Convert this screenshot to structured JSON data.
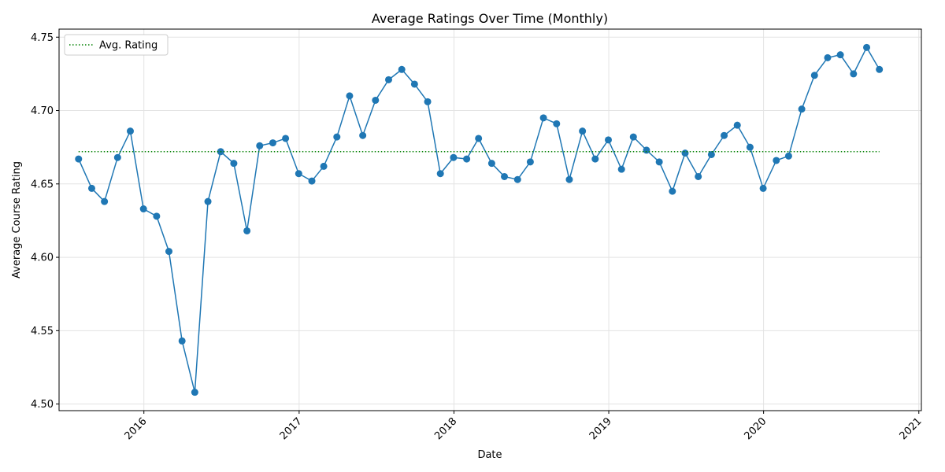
{
  "chart_data": {
    "type": "line",
    "title": "Average Ratings Over Time (Monthly)",
    "xlabel": "Date",
    "ylabel": "Average Course Rating",
    "xlim": [
      "2015-06-15",
      "2021-01-07"
    ],
    "ylim": [
      4.4955,
      4.7555
    ],
    "yticks": [
      4.5,
      4.55,
      4.6,
      4.65,
      4.7,
      4.75
    ],
    "ytick_labels": [
      "4.50",
      "4.55",
      "4.60",
      "4.65",
      "4.70",
      "4.75"
    ],
    "xticks": [
      "2016-01-01",
      "2017-01-01",
      "2018-01-01",
      "2019-01-01",
      "2020-01-01",
      "2021-01-01"
    ],
    "xtick_labels": [
      "2016",
      "2017",
      "2018",
      "2019",
      "2020",
      "2021"
    ],
    "grid": true,
    "legend": {
      "position": "top-left",
      "entries": [
        "Avg. Rating"
      ]
    },
    "series": [
      {
        "color": "#1f77b4",
        "marker": "circle",
        "points": [
          [
            "2015-07-31",
            4.667
          ],
          [
            "2015-08-31",
            4.647
          ],
          [
            "2015-09-30",
            4.638
          ],
          [
            "2015-10-31",
            4.668
          ],
          [
            "2015-11-30",
            4.686
          ],
          [
            "2015-12-31",
            4.633
          ],
          [
            "2016-01-31",
            4.628
          ],
          [
            "2016-02-29",
            4.604
          ],
          [
            "2016-03-31",
            4.543
          ],
          [
            "2016-04-30",
            4.508
          ],
          [
            "2016-05-31",
            4.638
          ],
          [
            "2016-06-30",
            4.672
          ],
          [
            "2016-07-31",
            4.664
          ],
          [
            "2016-08-31",
            4.618
          ],
          [
            "2016-09-30",
            4.676
          ],
          [
            "2016-10-31",
            4.678
          ],
          [
            "2016-11-30",
            4.681
          ],
          [
            "2016-12-31",
            4.657
          ],
          [
            "2017-01-31",
            4.652
          ],
          [
            "2017-02-28",
            4.662
          ],
          [
            "2017-03-31",
            4.682
          ],
          [
            "2017-04-30",
            4.71
          ],
          [
            "2017-05-31",
            4.683
          ],
          [
            "2017-06-30",
            4.707
          ],
          [
            "2017-07-31",
            4.721
          ],
          [
            "2017-08-31",
            4.728
          ],
          [
            "2017-09-30",
            4.718
          ],
          [
            "2017-10-31",
            4.706
          ],
          [
            "2017-11-30",
            4.657
          ],
          [
            "2017-12-31",
            4.668
          ],
          [
            "2018-01-31",
            4.667
          ],
          [
            "2018-02-28",
            4.681
          ],
          [
            "2018-03-31",
            4.664
          ],
          [
            "2018-04-30",
            4.655
          ],
          [
            "2018-05-31",
            4.653
          ],
          [
            "2018-06-30",
            4.665
          ],
          [
            "2018-07-31",
            4.695
          ],
          [
            "2018-08-31",
            4.691
          ],
          [
            "2018-09-30",
            4.653
          ],
          [
            "2018-10-31",
            4.686
          ],
          [
            "2018-11-30",
            4.667
          ],
          [
            "2018-12-31",
            4.68
          ],
          [
            "2019-01-31",
            4.66
          ],
          [
            "2019-02-28",
            4.682
          ],
          [
            "2019-03-31",
            4.673
          ],
          [
            "2019-04-30",
            4.665
          ],
          [
            "2019-05-31",
            4.645
          ],
          [
            "2019-06-30",
            4.671
          ],
          [
            "2019-07-31",
            4.655
          ],
          [
            "2019-08-31",
            4.67
          ],
          [
            "2019-09-30",
            4.683
          ],
          [
            "2019-10-31",
            4.69
          ],
          [
            "2019-11-30",
            4.675
          ],
          [
            "2019-12-31",
            4.647
          ],
          [
            "2020-01-31",
            4.666
          ],
          [
            "2020-02-29",
            4.669
          ],
          [
            "2020-03-31",
            4.701
          ],
          [
            "2020-04-30",
            4.724
          ],
          [
            "2020-05-31",
            4.736
          ],
          [
            "2020-06-30",
            4.738
          ],
          [
            "2020-07-31",
            4.725
          ],
          [
            "2020-08-31",
            4.743
          ],
          [
            "2020-09-30",
            4.728
          ]
        ]
      },
      {
        "name": "Avg. Rating",
        "color": "#008000",
        "style": "dotted",
        "points": [
          [
            "2015-07-31",
            4.672
          ],
          [
            "2020-09-30",
            4.672
          ]
        ]
      }
    ]
  }
}
